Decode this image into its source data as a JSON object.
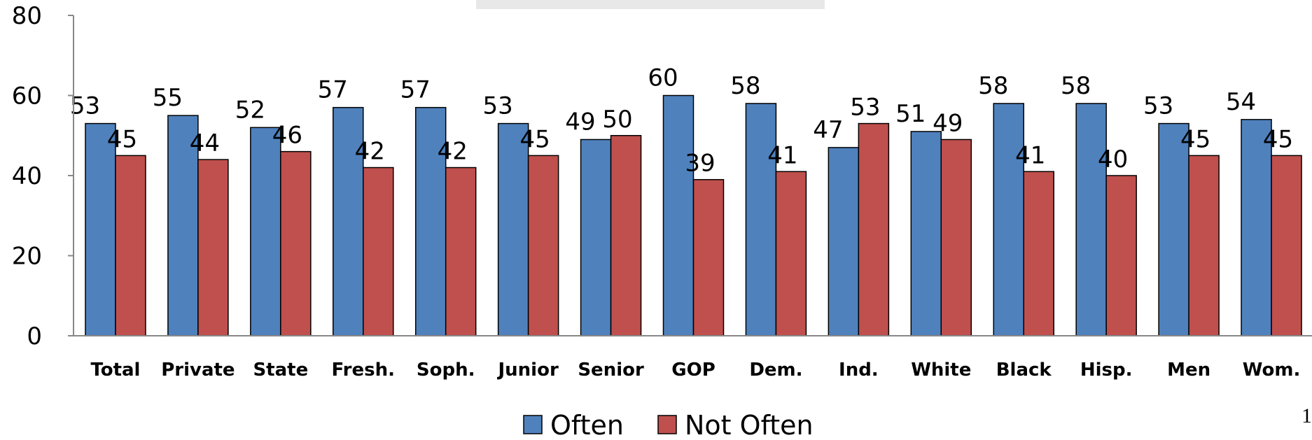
{
  "chart_data": {
    "type": "bar",
    "title": "",
    "xlabel": "",
    "ylabel": "",
    "ylim": [
      0,
      80
    ],
    "yticks": [
      0,
      20,
      40,
      60,
      80
    ],
    "categories": [
      "Total",
      "Private",
      "State",
      "Fresh.",
      "Soph.",
      "Junior",
      "Senior",
      "GOP",
      "Dem.",
      "Ind.",
      "White",
      "Black",
      "Hisp.",
      "Men",
      "Wom."
    ],
    "series": [
      {
        "name": "Often",
        "color": "#4F81BD",
        "values": [
          53,
          55,
          52,
          57,
          57,
          53,
          49,
          60,
          58,
          47,
          51,
          58,
          58,
          53,
          54
        ]
      },
      {
        "name": "Not Often",
        "color": "#C0504D",
        "values": [
          45,
          44,
          46,
          42,
          42,
          45,
          50,
          39,
          41,
          53,
          49,
          41,
          40,
          45,
          45
        ]
      }
    ],
    "grid": false,
    "legend_position": "bottom-center"
  },
  "page_number": "1"
}
